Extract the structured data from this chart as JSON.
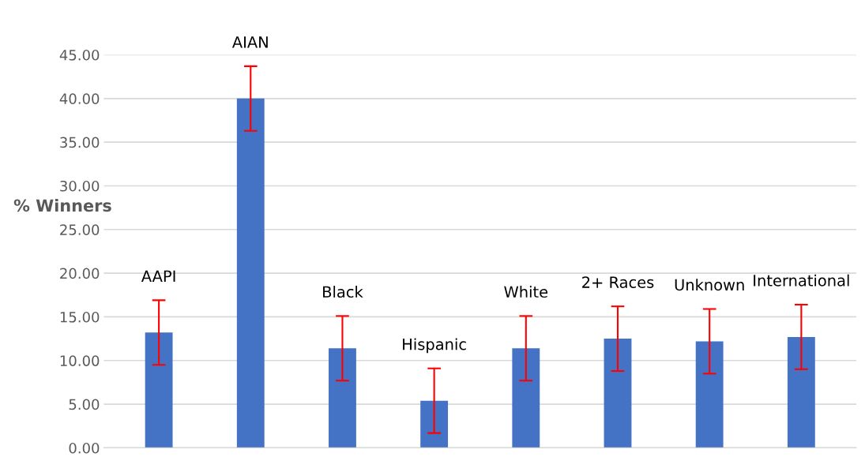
{
  "chart_data": {
    "type": "bar",
    "ylabel": "% Winners",
    "categories": [
      "AAPI",
      "AIAN",
      "Black",
      "Hispanic",
      "White",
      "2+ Races",
      "Unknown",
      "International"
    ],
    "values": [
      13.2,
      40.0,
      11.4,
      5.4,
      11.4,
      12.5,
      12.2,
      12.7
    ],
    "errors": [
      3.7,
      3.7,
      3.7,
      3.7,
      3.7,
      3.7,
      3.7,
      3.7
    ],
    "color": "#4472c4",
    "ylim": [
      0,
      45
    ],
    "yticks": [
      {
        "value": 0,
        "label": "0.00"
      },
      {
        "value": 5,
        "label": "5.00"
      },
      {
        "value": 10,
        "label": "10.00"
      },
      {
        "value": 15,
        "label": "15.00"
      },
      {
        "value": 20,
        "label": "20.00"
      },
      {
        "value": 25,
        "label": "25.00"
      },
      {
        "value": 30,
        "label": "30.00"
      },
      {
        "value": 35,
        "label": "35.00"
      },
      {
        "value": 40,
        "label": "40.00"
      },
      {
        "value": 45,
        "label": "45.00"
      }
    ],
    "tick_labels": "y",
    "grid": "y"
  }
}
